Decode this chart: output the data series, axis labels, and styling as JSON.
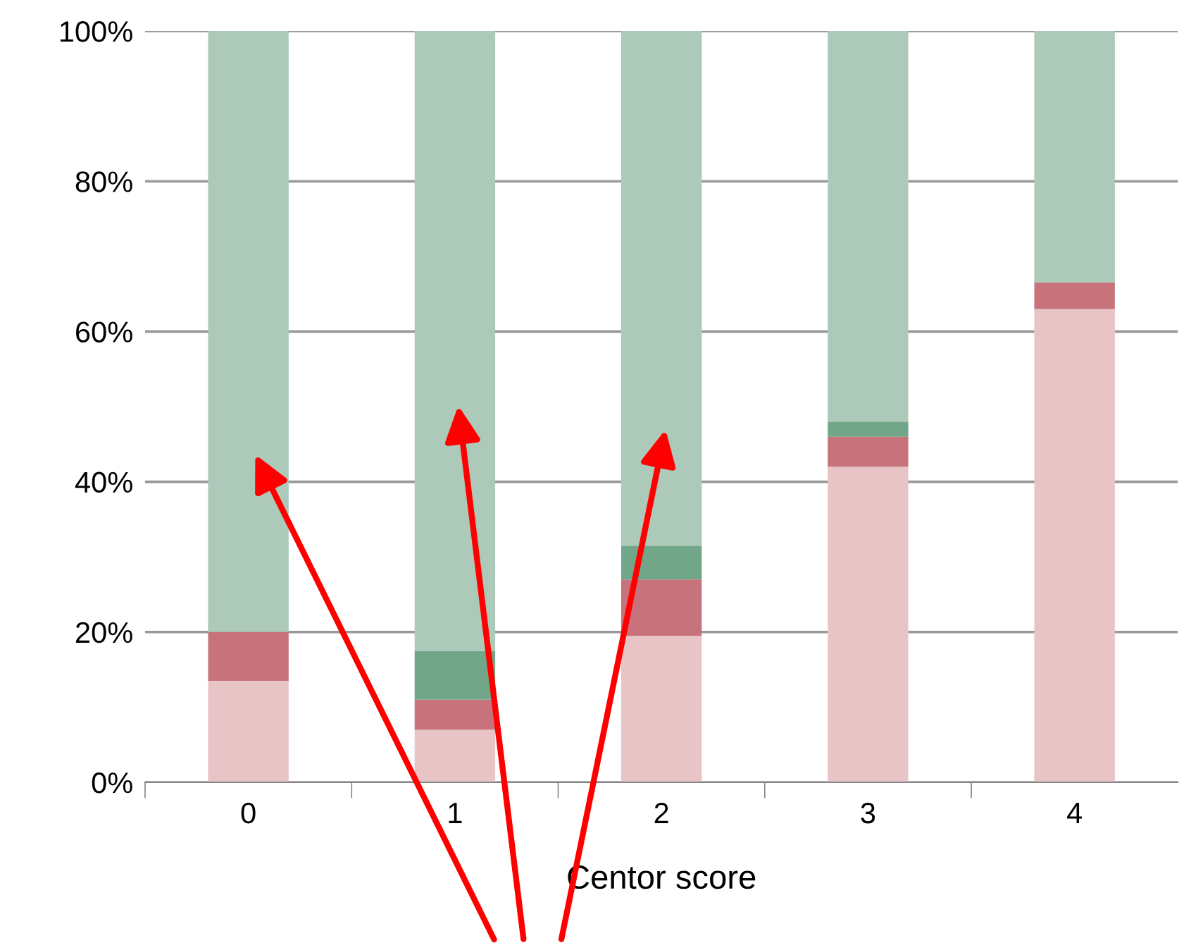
{
  "chart_data": {
    "type": "bar",
    "stacked": true,
    "xlabel": "Centor score",
    "categories": [
      "0",
      "1",
      "2",
      "3",
      "4"
    ],
    "series": [
      {
        "color": "#e8c4c7",
        "values": [
          13.5,
          7,
          19.5,
          42,
          63
        ]
      },
      {
        "color": "#c8737b",
        "values": [
          6.5,
          4,
          7.5,
          4,
          3.5
        ]
      },
      {
        "color": "#72a688",
        "values": [
          0,
          6.5,
          4.5,
          2,
          0
        ]
      },
      {
        "color": "#adc9b9",
        "values": [
          80,
          82.5,
          68.5,
          52,
          33.5
        ]
      }
    ],
    "ylim": [
      0,
      100
    ],
    "yticks": [
      {
        "value": 0,
        "label": "0%"
      },
      {
        "value": 20,
        "label": "20%"
      },
      {
        "value": 40,
        "label": "40%"
      },
      {
        "value": 60,
        "label": "60%"
      },
      {
        "value": 80,
        "label": "80%"
      },
      {
        "value": 100,
        "label": "100%"
      }
    ],
    "grid": "y"
  }
}
